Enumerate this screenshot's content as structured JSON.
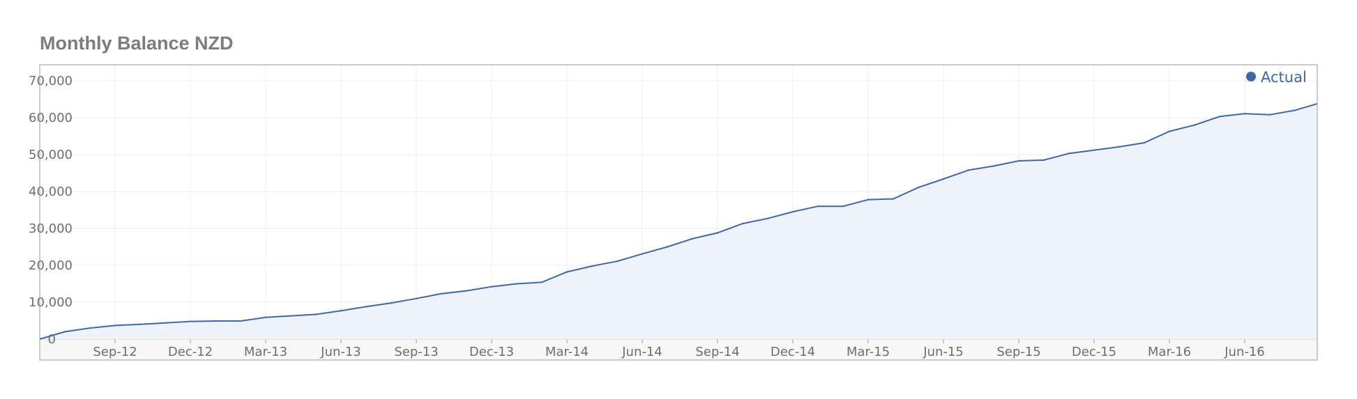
{
  "chart_data": {
    "type": "area",
    "title": "Monthly Balance NZD",
    "xlabel": "",
    "ylabel": "",
    "ylim": [
      0,
      75000
    ],
    "y_ticks": [
      0,
      10000,
      20000,
      30000,
      40000,
      50000,
      60000,
      70000
    ],
    "y_tick_labels": [
      "0",
      "10,000",
      "20,000",
      "30,000",
      "40,000",
      "50,000",
      "60,000",
      "70,000"
    ],
    "x_ticks": [
      "2012-09",
      "2012-12",
      "2013-03",
      "2013-06",
      "2013-09",
      "2013-12",
      "2014-03",
      "2014-06",
      "2014-09",
      "2014-12",
      "2015-03",
      "2015-06",
      "2015-09",
      "2015-12",
      "2016-03",
      "2016-06"
    ],
    "x_tick_labels": [
      "Sep-12",
      "Dec-12",
      "Mar-13",
      "Jun-13",
      "Sep-13",
      "Dec-13",
      "Mar-14",
      "Jun-14",
      "Sep-14",
      "Dec-14",
      "Mar-15",
      "Jun-15",
      "Sep-15",
      "Dec-15",
      "Mar-16",
      "Jun-16"
    ],
    "grid": true,
    "legend_position": "top-right",
    "series": [
      {
        "name": "Actual",
        "color": "#3f66ab",
        "fill": "#eef3fb",
        "x": [
          "2012-07",
          "2012-08",
          "2012-09",
          "2012-10",
          "2012-11",
          "2012-12",
          "2013-01",
          "2013-02",
          "2013-03",
          "2013-04",
          "2013-05",
          "2013-06",
          "2013-07",
          "2013-08",
          "2013-09",
          "2013-10",
          "2013-11",
          "2013-12",
          "2014-01",
          "2014-02",
          "2014-03",
          "2014-04",
          "2014-05",
          "2014-06",
          "2014-07",
          "2014-08",
          "2014-09",
          "2014-10",
          "2014-11",
          "2014-12",
          "2015-01",
          "2015-02",
          "2015-03",
          "2015-04",
          "2015-05",
          "2015-06",
          "2015-07",
          "2015-08",
          "2015-09",
          "2015-10",
          "2015-11",
          "2015-12",
          "2016-01",
          "2016-02",
          "2016-03",
          "2016-04",
          "2016-05",
          "2016-06",
          "2016-07",
          "2016-08"
        ],
        "values": [
          2000,
          3000,
          3700,
          4000,
          4400,
          4800,
          4900,
          4900,
          5900,
          6300,
          6700,
          7700,
          8800,
          9800,
          11000,
          12300,
          13100,
          14200,
          15000,
          15400,
          18200,
          19800,
          21100,
          23100,
          25000,
          27200,
          28800,
          31300,
          32700,
          34500,
          36000,
          36000,
          37800,
          38000,
          41100,
          43400,
          45800,
          46900,
          48300,
          48500,
          50300,
          51200,
          52100,
          53200,
          56300,
          58000,
          60300,
          61100,
          60800,
          62000
        ]
      }
    ],
    "x_start": "2012-06",
    "y_start": 0,
    "x_end": "2016-09",
    "y_end": 63800
  }
}
